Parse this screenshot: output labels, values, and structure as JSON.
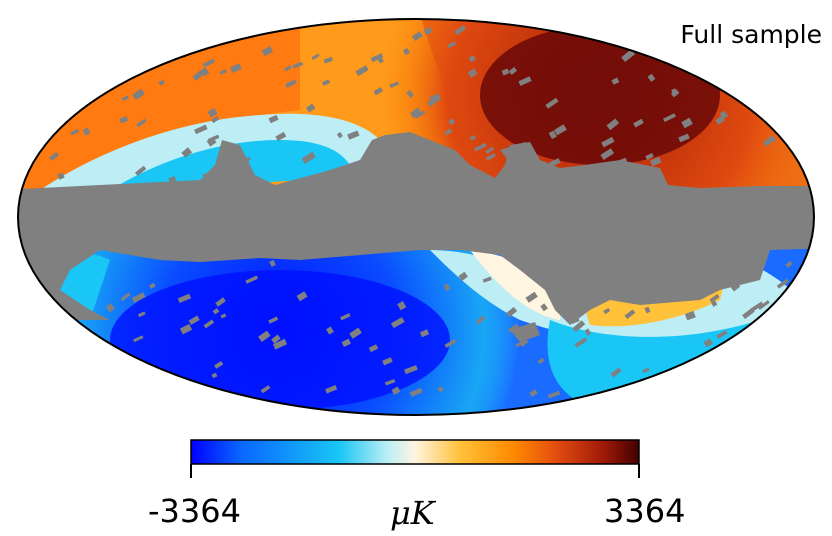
{
  "map": {
    "label": "Full sample",
    "projection": "mollweide",
    "mask_color": "#808080"
  },
  "colorbar": {
    "min_label": "-3364",
    "max_label": "3364",
    "unit_label": "μK",
    "min": -3364,
    "max": 3364,
    "colors": [
      "#0000ff",
      "#0a66ff",
      "#19c6f5",
      "#bdeef5",
      "#fff5e0",
      "#ffc23a",
      "#ff8a00",
      "#e04a10",
      "#a01a08",
      "#400000"
    ]
  }
}
